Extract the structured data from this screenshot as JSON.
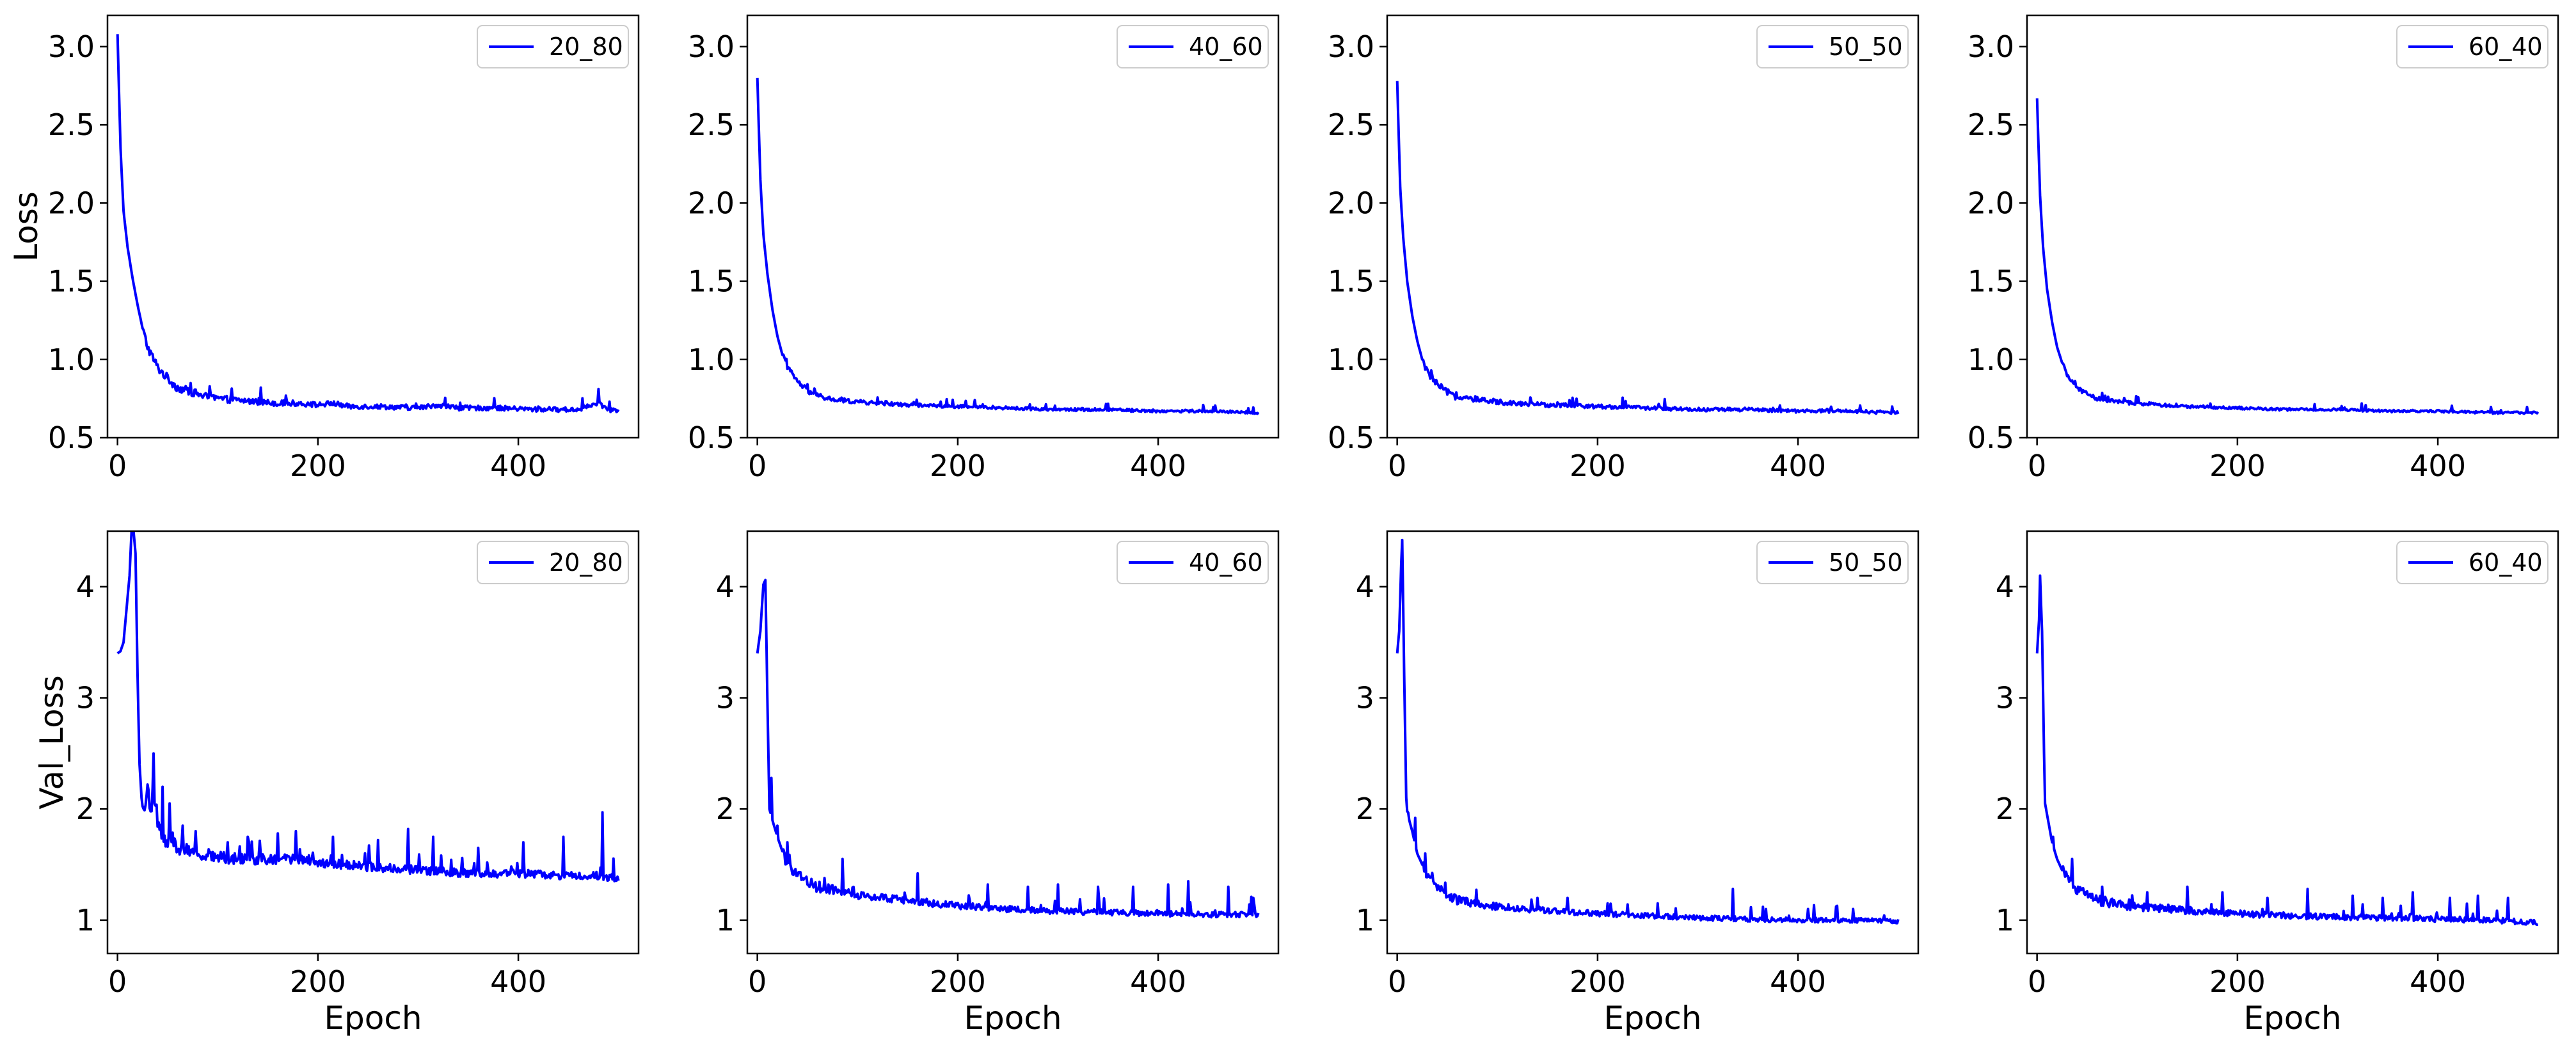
{
  "figure": {
    "line_color": "#0000ff",
    "axis_color": "#000000",
    "background": "#ffffff"
  },
  "chart_data": [
    {
      "type": "line",
      "row": "train",
      "legend": "20_80",
      "xlabel": "",
      "ylabel": "Loss",
      "xlim": [
        -10,
        520
      ],
      "ylim": [
        0.5,
        3.2
      ],
      "xticks": [
        0,
        200,
        400
      ],
      "yticks": [
        0.5,
        1.0,
        1.5,
        2.0,
        2.5,
        3.0
      ],
      "ytick_labels": [
        "0.5",
        "1.0",
        "1.5",
        "2.0",
        "2.5",
        "3.0"
      ],
      "x": [
        0,
        3,
        6,
        10,
        15,
        20,
        25,
        30,
        40,
        50,
        60,
        70,
        80,
        90,
        100,
        120,
        140,
        160,
        180,
        200,
        215,
        230,
        260,
        300,
        320,
        340,
        380,
        420,
        460,
        480,
        490,
        500
      ],
      "y": [
        3.08,
        2.35,
        1.95,
        1.72,
        1.52,
        1.35,
        1.2,
        1.08,
        0.95,
        0.88,
        0.82,
        0.8,
        0.78,
        0.76,
        0.75,
        0.74,
        0.73,
        0.72,
        0.72,
        0.71,
        0.72,
        0.7,
        0.7,
        0.69,
        0.71,
        0.69,
        0.69,
        0.68,
        0.68,
        0.72,
        0.68,
        0.67
      ],
      "noise": 0.02
    },
    {
      "type": "line",
      "row": "train",
      "legend": "40_60",
      "xlabel": "",
      "ylabel": "",
      "xlim": [
        -10,
        520
      ],
      "ylim": [
        0.5,
        3.2
      ],
      "xticks": [
        0,
        200,
        400
      ],
      "yticks": [
        0.5,
        1.0,
        1.5,
        2.0,
        2.5,
        3.0
      ],
      "ytick_labels": [
        "0.5",
        "1.0",
        "1.5",
        "2.0",
        "2.5",
        "3.0"
      ],
      "x": [
        0,
        3,
        6,
        10,
        15,
        20,
        25,
        30,
        40,
        50,
        60,
        70,
        80,
        100,
        120,
        150,
        200,
        250,
        300,
        350,
        400,
        450,
        500
      ],
      "y": [
        2.8,
        2.15,
        1.8,
        1.55,
        1.32,
        1.15,
        1.03,
        0.95,
        0.86,
        0.8,
        0.77,
        0.75,
        0.74,
        0.73,
        0.72,
        0.71,
        0.7,
        0.69,
        0.68,
        0.68,
        0.67,
        0.67,
        0.66
      ],
      "noise": 0.012
    },
    {
      "type": "line",
      "row": "train",
      "legend": "50_50",
      "xlabel": "",
      "ylabel": "",
      "xlim": [
        -10,
        520
      ],
      "ylim": [
        0.5,
        3.2
      ],
      "xticks": [
        0,
        200,
        400
      ],
      "yticks": [
        0.5,
        1.0,
        1.5,
        2.0,
        2.5,
        3.0
      ],
      "ytick_labels": [
        "0.5",
        "1.0",
        "1.5",
        "2.0",
        "2.5",
        "3.0"
      ],
      "x": [
        0,
        3,
        6,
        10,
        15,
        20,
        25,
        30,
        40,
        50,
        60,
        70,
        80,
        100,
        120,
        150,
        200,
        250,
        300,
        350,
        400,
        450,
        500
      ],
      "y": [
        2.78,
        2.1,
        1.78,
        1.5,
        1.28,
        1.12,
        1.0,
        0.92,
        0.84,
        0.79,
        0.76,
        0.75,
        0.74,
        0.73,
        0.72,
        0.71,
        0.7,
        0.69,
        0.68,
        0.68,
        0.67,
        0.67,
        0.66
      ],
      "noise": 0.015
    },
    {
      "type": "line",
      "row": "train",
      "legend": "60_40",
      "xlabel": "",
      "ylabel": "",
      "xlim": [
        -10,
        520
      ],
      "ylim": [
        0.5,
        3.2
      ],
      "xticks": [
        0,
        200,
        400
      ],
      "yticks": [
        0.5,
        1.0,
        1.5,
        2.0,
        2.5,
        3.0
      ],
      "ytick_labels": [
        "0.5",
        "1.0",
        "1.5",
        "2.0",
        "2.5",
        "3.0"
      ],
      "x": [
        0,
        3,
        6,
        10,
        15,
        20,
        25,
        30,
        40,
        50,
        60,
        70,
        80,
        100,
        120,
        150,
        200,
        250,
        300,
        350,
        400,
        450,
        500
      ],
      "y": [
        2.67,
        2.05,
        1.72,
        1.45,
        1.24,
        1.08,
        0.98,
        0.9,
        0.82,
        0.78,
        0.75,
        0.74,
        0.73,
        0.72,
        0.71,
        0.7,
        0.69,
        0.68,
        0.68,
        0.67,
        0.67,
        0.66,
        0.66
      ],
      "noise": 0.01
    },
    {
      "type": "line",
      "row": "val",
      "legend": "20_80",
      "xlabel": "Epoch",
      "ylabel": "Val_Loss",
      "xlim": [
        -10,
        520
      ],
      "ylim": [
        0.7,
        4.5
      ],
      "xticks": [
        0,
        200,
        400
      ],
      "yticks": [
        1,
        2,
        3,
        4
      ],
      "ytick_labels": [
        "1",
        "2",
        "3",
        "4"
      ],
      "x": [
        0,
        3,
        6,
        9,
        12,
        14,
        16,
        18,
        20,
        22,
        24,
        26,
        28,
        30,
        33,
        36,
        40,
        45,
        50,
        60,
        70,
        80,
        100,
        120,
        150,
        180,
        200,
        250,
        300,
        350,
        400,
        450,
        480,
        490,
        500
      ],
      "y": [
        3.4,
        3.42,
        3.5,
        3.8,
        4.1,
        4.5,
        4.5,
        4.3,
        3.2,
        2.4,
        2.1,
        1.95,
        2.05,
        2.2,
        2.0,
        2.1,
        1.85,
        1.75,
        1.72,
        1.65,
        1.62,
        1.6,
        1.57,
        1.55,
        1.55,
        1.55,
        1.52,
        1.48,
        1.45,
        1.42,
        1.42,
        1.4,
        1.4,
        1.38,
        1.38
      ],
      "noise": 0.05,
      "spikes": [
        [
          36,
          2.5
        ],
        [
          45,
          2.2
        ],
        [
          52,
          2.05
        ],
        [
          65,
          1.85
        ],
        [
          78,
          1.8
        ],
        [
          110,
          1.7
        ],
        [
          130,
          1.75
        ],
        [
          160,
          1.78
        ],
        [
          178,
          1.8
        ],
        [
          215,
          1.75
        ],
        [
          260,
          1.72
        ],
        [
          290,
          1.82
        ],
        [
          315,
          1.75
        ],
        [
          360,
          1.65
        ],
        [
          405,
          1.7
        ],
        [
          445,
          1.75
        ],
        [
          484,
          1.97
        ]
      ]
    },
    {
      "type": "line",
      "row": "val",
      "legend": "40_60",
      "xlabel": "Epoch",
      "ylabel": "",
      "xlim": [
        -10,
        520
      ],
      "ylim": [
        0.7,
        4.5
      ],
      "xticks": [
        0,
        200,
        400
      ],
      "yticks": [
        1,
        2,
        3,
        4
      ],
      "ytick_labels": [
        "1",
        "2",
        "3",
        "4"
      ],
      "x": [
        0,
        3,
        6,
        8,
        10,
        12,
        15,
        20,
        25,
        30,
        40,
        50,
        60,
        80,
        100,
        130,
        160,
        200,
        250,
        300,
        350,
        400,
        450,
        500
      ],
      "y": [
        3.4,
        3.6,
        4.02,
        4.06,
        3.0,
        2.0,
        1.9,
        1.75,
        1.62,
        1.5,
        1.42,
        1.35,
        1.3,
        1.27,
        1.22,
        1.2,
        1.16,
        1.13,
        1.1,
        1.08,
        1.07,
        1.06,
        1.05,
        1.05
      ],
      "noise": 0.035,
      "spikes": [
        [
          14,
          2.28
        ],
        [
          20,
          1.85
        ],
        [
          30,
          1.7
        ],
        [
          85,
          1.55
        ],
        [
          160,
          1.42
        ],
        [
          230,
          1.32
        ],
        [
          270,
          1.3
        ],
        [
          300,
          1.32
        ],
        [
          340,
          1.3
        ],
        [
          375,
          1.3
        ],
        [
          410,
          1.32
        ],
        [
          430,
          1.35
        ],
        [
          470,
          1.3
        ],
        [
          495,
          1.2
        ]
      ]
    },
    {
      "type": "line",
      "row": "val",
      "legend": "50_50",
      "xlabel": "Epoch",
      "ylabel": "",
      "xlim": [
        -10,
        520
      ],
      "ylim": [
        0.7,
        4.5
      ],
      "xticks": [
        0,
        200,
        400
      ],
      "yticks": [
        1,
        2,
        3,
        4
      ],
      "ytick_labels": [
        "1",
        "2",
        "3",
        "4"
      ],
      "x": [
        0,
        2,
        4,
        5,
        7,
        9,
        12,
        15,
        20,
        25,
        30,
        40,
        50,
        60,
        80,
        100,
        130,
        160,
        200,
        250,
        300,
        350,
        400,
        450,
        500
      ],
      "y": [
        3.4,
        3.6,
        4.2,
        4.42,
        3.2,
        2.1,
        1.9,
        1.8,
        1.6,
        1.5,
        1.4,
        1.3,
        1.22,
        1.18,
        1.15,
        1.12,
        1.1,
        1.08,
        1.06,
        1.04,
        1.02,
        1.01,
        1.0,
        1.0,
        0.99
      ],
      "noise": 0.03,
      "spikes": [
        [
          10,
          1.98
        ],
        [
          18,
          1.92
        ],
        [
          28,
          1.6
        ],
        [
          140,
          1.2
        ],
        [
          170,
          1.2
        ],
        [
          210,
          1.15
        ],
        [
          260,
          1.15
        ],
        [
          335,
          1.28
        ],
        [
          365,
          1.12
        ],
        [
          410,
          1.1
        ],
        [
          455,
          1.1
        ]
      ]
    },
    {
      "type": "line",
      "row": "val",
      "legend": "60_40",
      "xlabel": "Epoch",
      "ylabel": "",
      "xlim": [
        -10,
        520
      ],
      "ylim": [
        0.7,
        4.5
      ],
      "xticks": [
        0,
        200,
        400
      ],
      "yticks": [
        1,
        2,
        3,
        4
      ],
      "ytick_labels": [
        "1",
        "2",
        "3",
        "4"
      ],
      "x": [
        0,
        2,
        3,
        5,
        7,
        9,
        12,
        15,
        20,
        25,
        30,
        40,
        50,
        60,
        80,
        100,
        130,
        160,
        200,
        250,
        300,
        350,
        400,
        450,
        500
      ],
      "y": [
        3.4,
        3.7,
        4.1,
        3.6,
        2.5,
        2.0,
        1.85,
        1.7,
        1.55,
        1.45,
        1.38,
        1.28,
        1.22,
        1.18,
        1.14,
        1.12,
        1.1,
        1.08,
        1.06,
        1.04,
        1.03,
        1.02,
        1.01,
        1.0,
        0.98
      ],
      "noise": 0.035,
      "spikes": [
        [
          8,
          2.05
        ],
        [
          16,
          1.75
        ],
        [
          35,
          1.55
        ],
        [
          65,
          1.3
        ],
        [
          110,
          1.25
        ],
        [
          150,
          1.3
        ],
        [
          185,
          1.25
        ],
        [
          230,
          1.2
        ],
        [
          270,
          1.28
        ],
        [
          315,
          1.22
        ],
        [
          345,
          1.2
        ],
        [
          375,
          1.25
        ],
        [
          412,
          1.2
        ],
        [
          440,
          1.22
        ],
        [
          470,
          1.2
        ]
      ]
    }
  ]
}
